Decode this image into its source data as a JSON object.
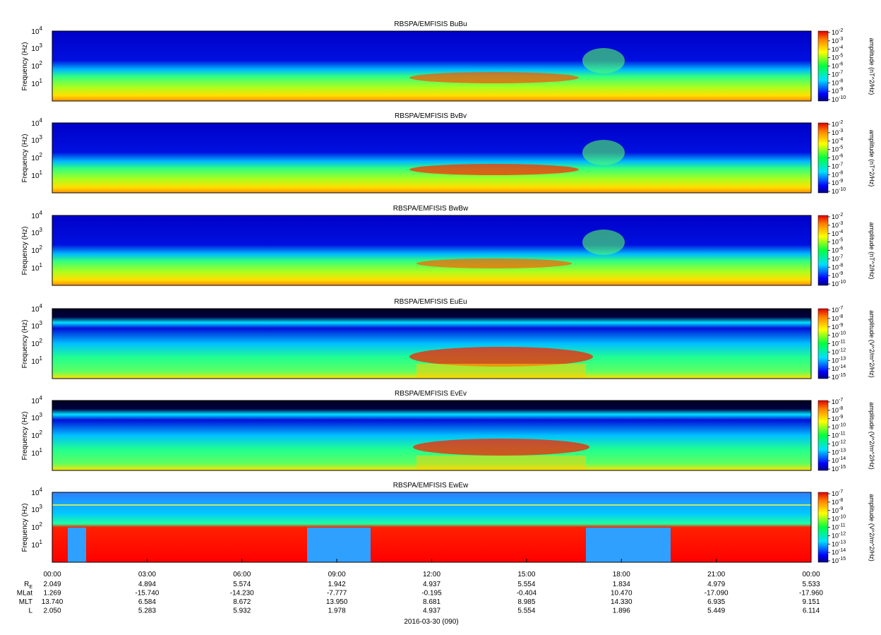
{
  "chart_data": {
    "type": "heatmap",
    "date_label": "2016-03-30 (090)",
    "time_ticks": [
      "00:00",
      "03:00",
      "06:00",
      "09:00",
      "12:00",
      "15:00",
      "18:00",
      "21:00",
      "00:00"
    ],
    "ylabel": "Frequency (Hz)",
    "y_scale": "log",
    "ylim": [
      2,
      12000
    ],
    "y_tick_labels": [
      {
        "value": 10000,
        "base": "10",
        "exp": "4"
      },
      {
        "value": 1000,
        "base": "10",
        "exp": "3"
      },
      {
        "value": 100,
        "base": "10",
        "exp": "2"
      },
      {
        "value": 10,
        "base": "10",
        "exp": "1"
      }
    ],
    "colormap": "rainbow",
    "panels": [
      {
        "title": "RBSPA/EMFISIS BuBu",
        "colorbar_label": "amplitude (nT^2/Hz)",
        "colorbar_ticks": [
          {
            "base": "10",
            "exp": "-2"
          },
          {
            "base": "10",
            "exp": "-3"
          },
          {
            "base": "10",
            "exp": "-4"
          },
          {
            "base": "10",
            "exp": "-5"
          },
          {
            "base": "10",
            "exp": "-6"
          },
          {
            "base": "10",
            "exp": "-7"
          },
          {
            "base": "10",
            "exp": "-8"
          },
          {
            "base": "10",
            "exp": "-9"
          },
          {
            "base": "10",
            "exp": "-10"
          }
        ]
      },
      {
        "title": "RBSPA/EMFISIS BvBv",
        "colorbar_label": "amplitude (nT^2/Hz)",
        "colorbar_ticks": [
          {
            "base": "10",
            "exp": "-2"
          },
          {
            "base": "10",
            "exp": "-3"
          },
          {
            "base": "10",
            "exp": "-4"
          },
          {
            "base": "10",
            "exp": "-5"
          },
          {
            "base": "10",
            "exp": "-6"
          },
          {
            "base": "10",
            "exp": "-7"
          },
          {
            "base": "10",
            "exp": "-8"
          },
          {
            "base": "10",
            "exp": "-9"
          },
          {
            "base": "10",
            "exp": "-10"
          }
        ]
      },
      {
        "title": "RBSPA/EMFISIS BwBw",
        "colorbar_label": "amplitude (nT^2/Hz)",
        "colorbar_ticks": [
          {
            "base": "10",
            "exp": "-2"
          },
          {
            "base": "10",
            "exp": "-3"
          },
          {
            "base": "10",
            "exp": "-4"
          },
          {
            "base": "10",
            "exp": "-5"
          },
          {
            "base": "10",
            "exp": "-6"
          },
          {
            "base": "10",
            "exp": "-7"
          },
          {
            "base": "10",
            "exp": "-8"
          },
          {
            "base": "10",
            "exp": "-9"
          },
          {
            "base": "10",
            "exp": "-10"
          }
        ]
      },
      {
        "title": "RBSPA/EMFISIS EuEu",
        "colorbar_label": "amplitude (V^2/m^2/Hz)",
        "colorbar_ticks": [
          {
            "base": "10",
            "exp": "-7"
          },
          {
            "base": "10",
            "exp": "-8"
          },
          {
            "base": "10",
            "exp": "-9"
          },
          {
            "base": "10",
            "exp": "-10"
          },
          {
            "base": "10",
            "exp": "-11"
          },
          {
            "base": "10",
            "exp": "-12"
          },
          {
            "base": "10",
            "exp": "-13"
          },
          {
            "base": "10",
            "exp": "-14"
          },
          {
            "base": "10",
            "exp": "-15"
          }
        ]
      },
      {
        "title": "RBSPA/EMFISIS EvEv",
        "colorbar_label": "amplitude (V^2/m^2/Hz)",
        "colorbar_ticks": [
          {
            "base": "10",
            "exp": "-7"
          },
          {
            "base": "10",
            "exp": "-8"
          },
          {
            "base": "10",
            "exp": "-9"
          },
          {
            "base": "10",
            "exp": "-10"
          },
          {
            "base": "10",
            "exp": "-11"
          },
          {
            "base": "10",
            "exp": "-12"
          },
          {
            "base": "10",
            "exp": "-13"
          },
          {
            "base": "10",
            "exp": "-14"
          },
          {
            "base": "10",
            "exp": "-15"
          }
        ]
      },
      {
        "title": "RBSPA/EMFISIS EwEw",
        "colorbar_label": "amplitude (V^2/m^2/Hz)",
        "colorbar_ticks": [
          {
            "base": "10",
            "exp": "-7"
          },
          {
            "base": "10",
            "exp": "-8"
          },
          {
            "base": "10",
            "exp": "-9"
          },
          {
            "base": "10",
            "exp": "-10"
          },
          {
            "base": "10",
            "exp": "-11"
          },
          {
            "base": "10",
            "exp": "-12"
          },
          {
            "base": "10",
            "exp": "-13"
          },
          {
            "base": "10",
            "exp": "-14"
          },
          {
            "base": "10",
            "exp": "-15"
          }
        ]
      }
    ],
    "ephemeris": [
      {
        "label": "R",
        "sub": "E",
        "values": [
          "2.049",
          "4.894",
          "5.574",
          "1.942",
          "4.937",
          "5.554",
          "1.834",
          "4.979",
          "5.533"
        ]
      },
      {
        "label": "MLat",
        "sub": "",
        "values": [
          "1.269",
          "-15.740",
          "-14.230",
          "-7.777",
          "-0.195",
          "-0.404",
          "10.470",
          "-17.090",
          "-17.960"
        ]
      },
      {
        "label": "MLT",
        "sub": "",
        "values": [
          "13.740",
          "6.584",
          "8.672",
          "13.950",
          "8.681",
          "8.985",
          "14.330",
          "6.935",
          "9.151"
        ]
      },
      {
        "label": "L",
        "sub": "",
        "values": [
          "2.050",
          "5.283",
          "5.932",
          "1.978",
          "4.937",
          "5.554",
          "1.896",
          "5.449",
          "6.114"
        ]
      }
    ]
  }
}
